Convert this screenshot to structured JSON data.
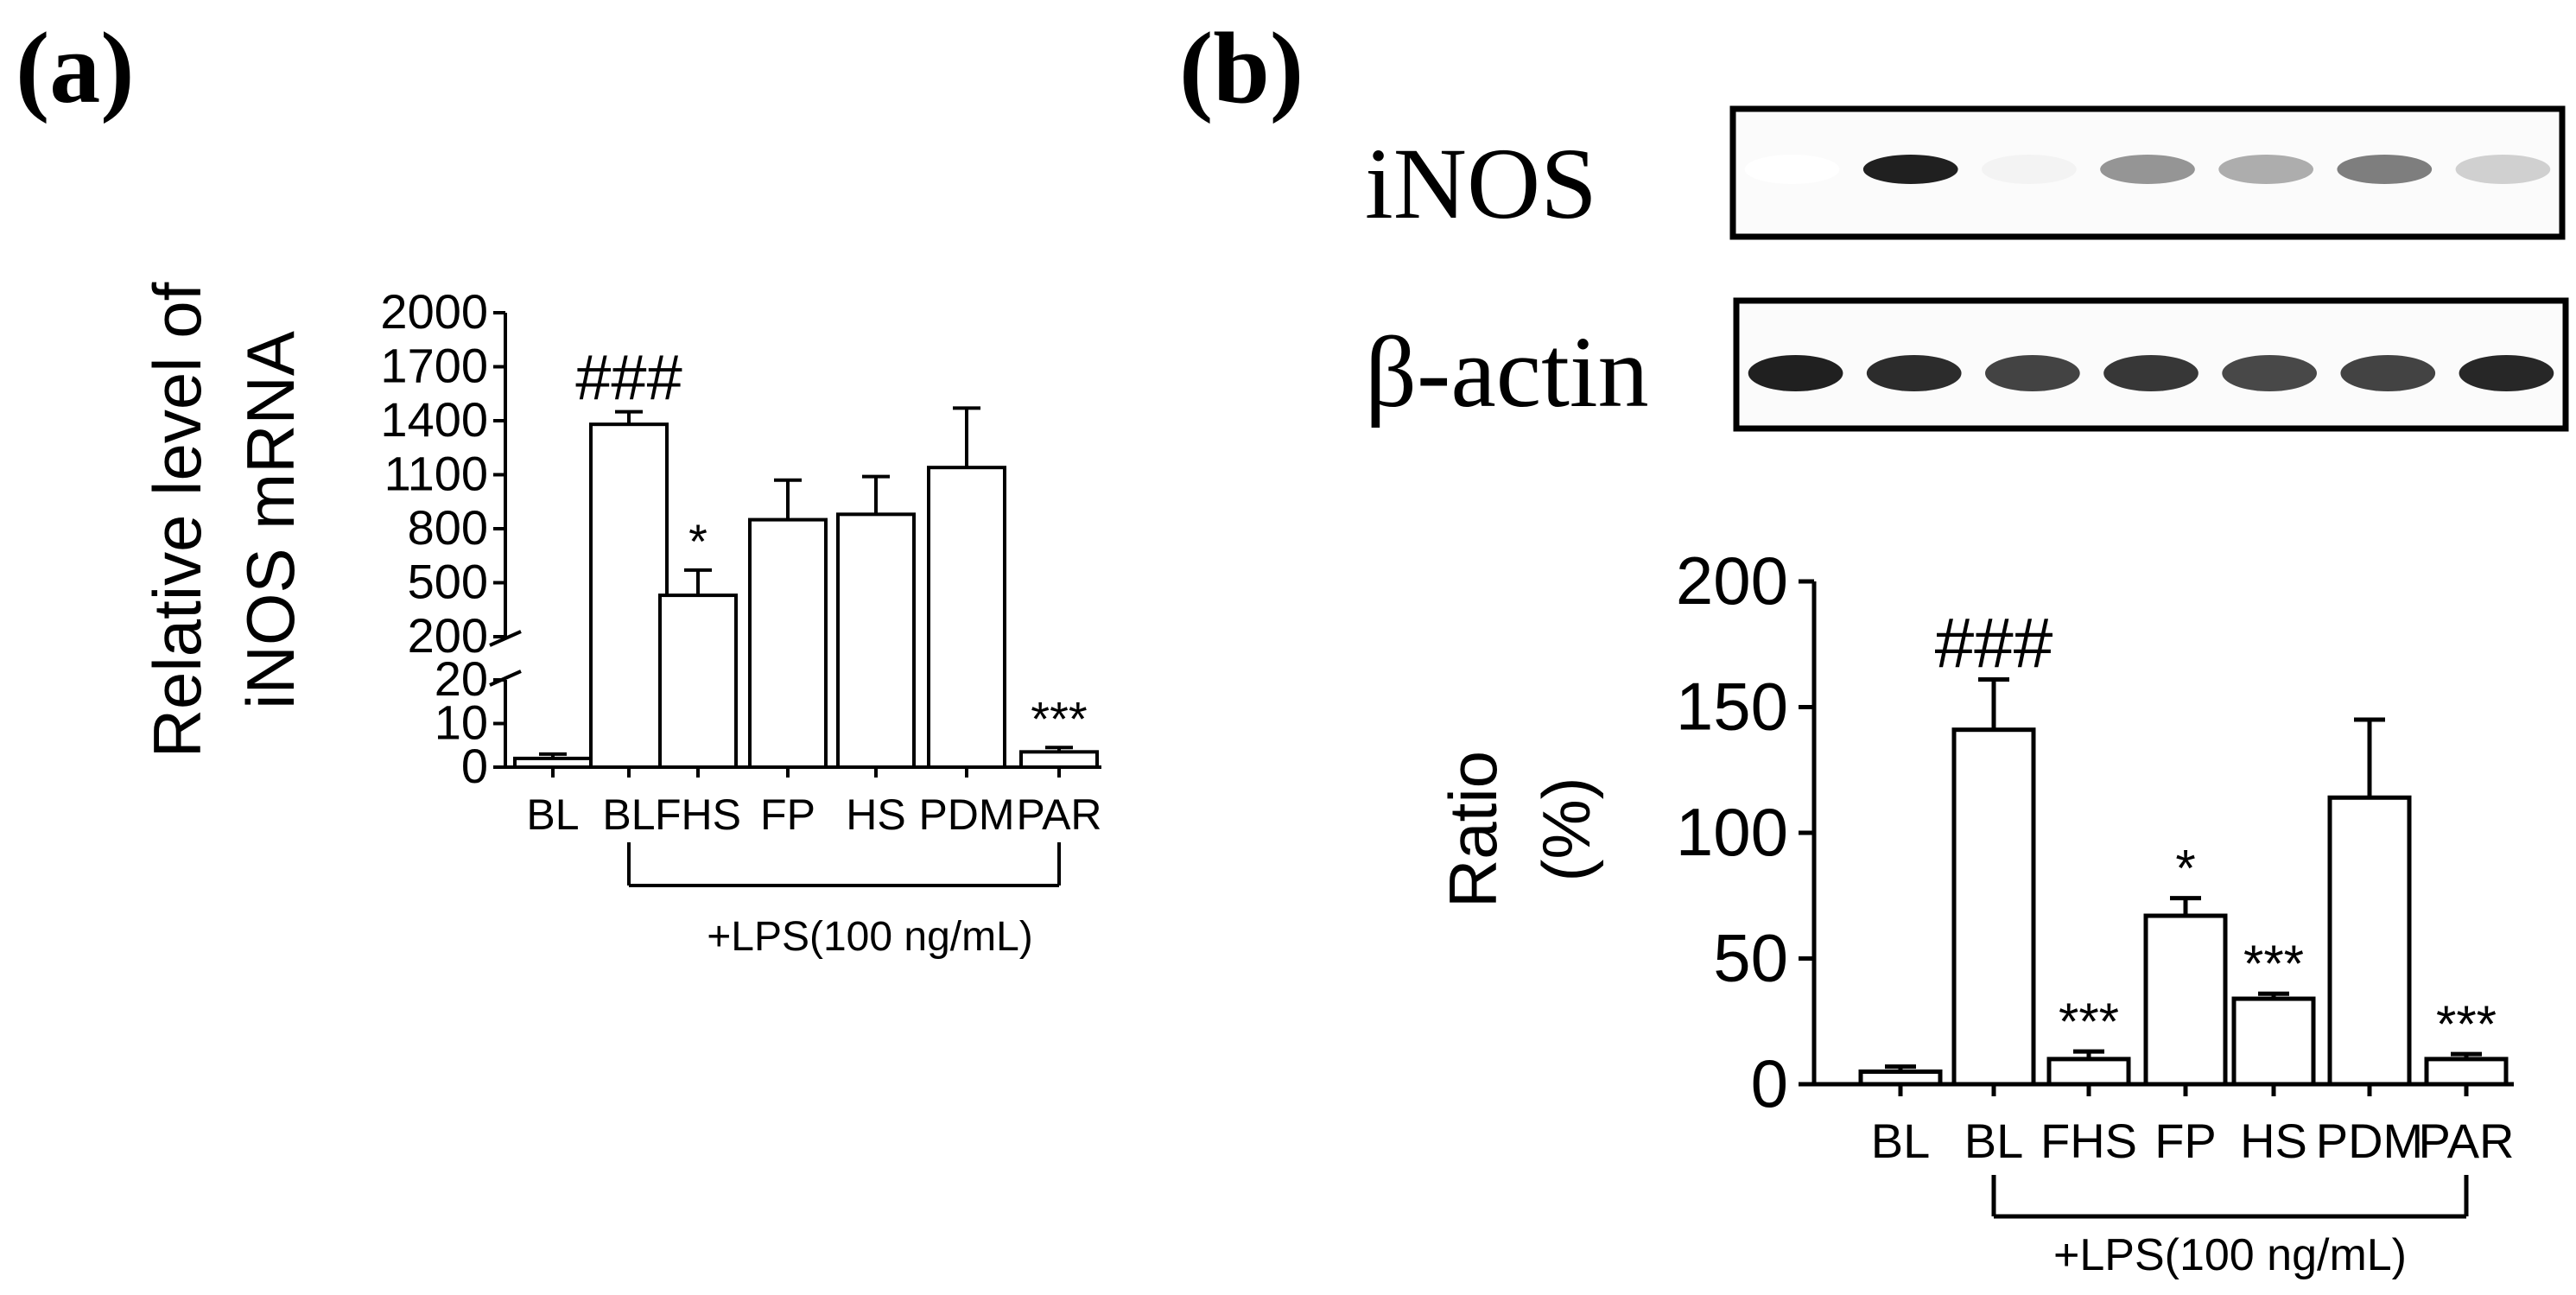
{
  "panel_a": {
    "label": "(a)"
  },
  "panel_b": {
    "label": "(b)"
  },
  "blot": {
    "rows": [
      {
        "label": "iNOS",
        "band_intensity": [
          0.0,
          0.95,
          0.05,
          0.45,
          0.35,
          0.55,
          0.2
        ]
      },
      {
        "label": "β-actin",
        "band_intensity": [
          0.95,
          0.9,
          0.8,
          0.85,
          0.78,
          0.8,
          0.92
        ]
      }
    ]
  },
  "chart_data": [
    {
      "type": "bar",
      "panel": "(a)",
      "title": "",
      "xlabel": "",
      "ylabel": [
        "Relative level of",
        "iNOS mRNA"
      ],
      "categories": [
        "BL",
        "BL",
        "FHS",
        "FP",
        "HS",
        "PDM",
        "PAR"
      ],
      "values": [
        2,
        1380,
        430,
        850,
        880,
        1140,
        3.5
      ],
      "errors": [
        1,
        70,
        140,
        220,
        210,
        330,
        1
      ],
      "annotations": [
        "",
        "###",
        "*",
        "",
        "",
        "",
        "***"
      ],
      "axis_break": {
        "lower_range": [
          0,
          20
        ],
        "upper_range": [
          200,
          2000
        ]
      },
      "lower_ticks": [
        0,
        10,
        20
      ],
      "upper_ticks": [
        200,
        500,
        800,
        1100,
        1400,
        1700,
        2000
      ],
      "group_label": "+LPS(100 ng/mL)",
      "group_from": 1,
      "group_to": 6
    },
    {
      "type": "bar",
      "panel": "(b)",
      "title": "",
      "xlabel": "",
      "ylabel": [
        "Ratio",
        "(%)"
      ],
      "categories": [
        "BL",
        "BL",
        "FHS",
        "FP",
        "HS",
        "PDM",
        "PAR"
      ],
      "values": [
        5,
        141,
        10,
        67,
        34,
        114,
        10
      ],
      "errors": [
        2,
        20,
        3,
        7,
        2,
        31,
        2
      ],
      "annotations": [
        "",
        "###",
        "***",
        "*",
        "***",
        "",
        "***"
      ],
      "ylim": [
        0,
        200
      ],
      "yticks": [
        0,
        50,
        100,
        150,
        200
      ],
      "group_label": "+LPS(100 ng/mL)",
      "group_from": 1,
      "group_to": 6
    }
  ]
}
